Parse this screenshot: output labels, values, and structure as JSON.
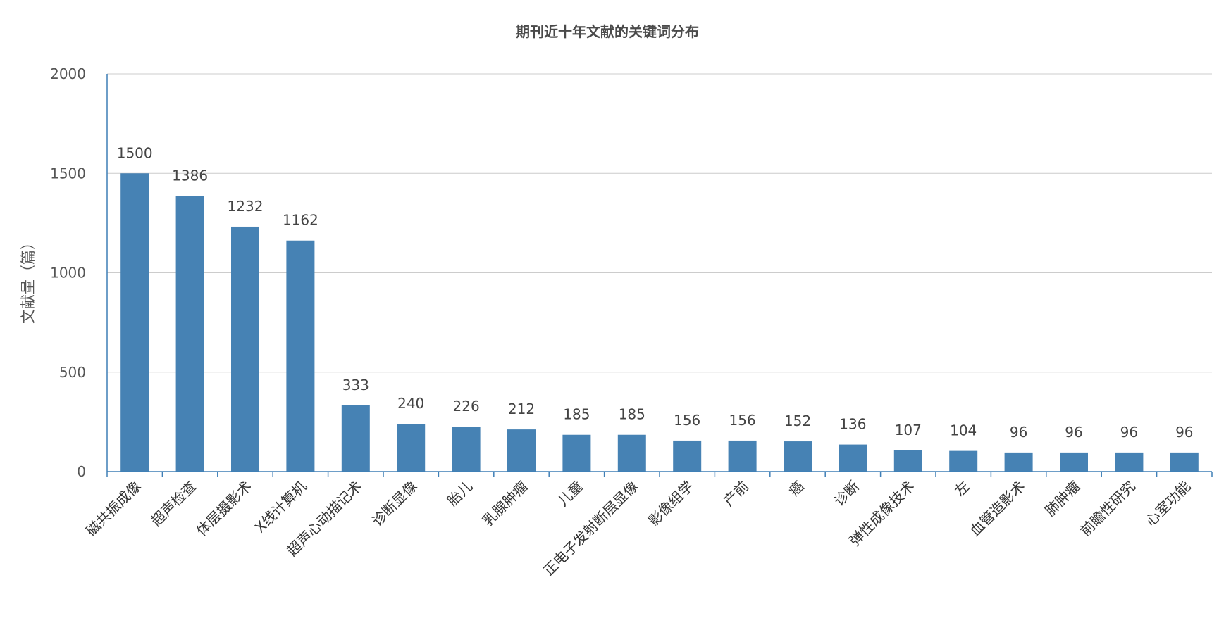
{
  "chart_data": {
    "type": "bar",
    "title": "期刊近十年文献的关键词分布",
    "xlabel": "",
    "ylabel": "文献量（篇）",
    "ylim": [
      0,
      2000
    ],
    "yticks": [
      0,
      500,
      1000,
      1500,
      2000
    ],
    "grid": true,
    "bar_color": "#4682b4",
    "categories": [
      "磁共振成像",
      "超声检查",
      "体层摄影术",
      "X线计算机",
      "超声心动描记术",
      "诊断显像",
      "胎儿",
      "乳腺肿瘤",
      "儿童",
      "正电子发射断层显像",
      "影像组学",
      "产前",
      "癌",
      "诊断",
      "弹性成像技术",
      "左",
      "血管造影术",
      "肺肿瘤",
      "前瞻性研究",
      "心室功能"
    ],
    "values": [
      1500,
      1386,
      1232,
      1162,
      333,
      240,
      226,
      212,
      185,
      185,
      156,
      156,
      152,
      136,
      107,
      104,
      96,
      96,
      96,
      96
    ]
  }
}
